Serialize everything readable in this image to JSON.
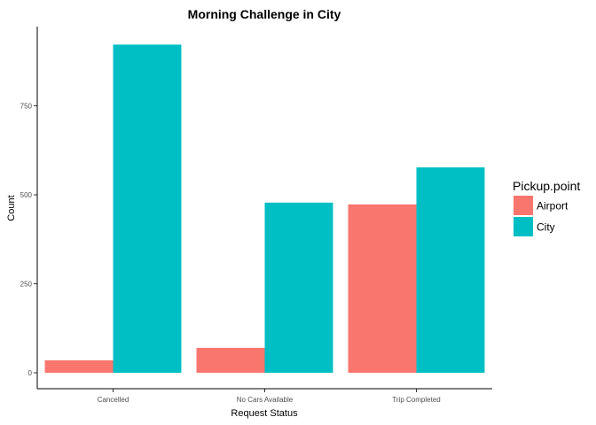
{
  "chart_data": {
    "type": "bar",
    "title": "Morning Challenge in City",
    "xlabel": "Request Status",
    "ylabel": "Count",
    "categories": [
      "Cancelled",
      "No Cars Available",
      "Trip Completed"
    ],
    "series": [
      {
        "name": "Airport",
        "values": [
          35,
          70,
          473
        ],
        "color": "#F8766D"
      },
      {
        "name": "City",
        "values": [
          922,
          478,
          577
        ],
        "color": "#00BFC4"
      }
    ],
    "yticks": [
      0,
      250,
      500,
      750
    ],
    "ylim": [
      0,
      970
    ],
    "grid": false,
    "legend": {
      "title": "Pickup.point",
      "position": "right"
    }
  }
}
